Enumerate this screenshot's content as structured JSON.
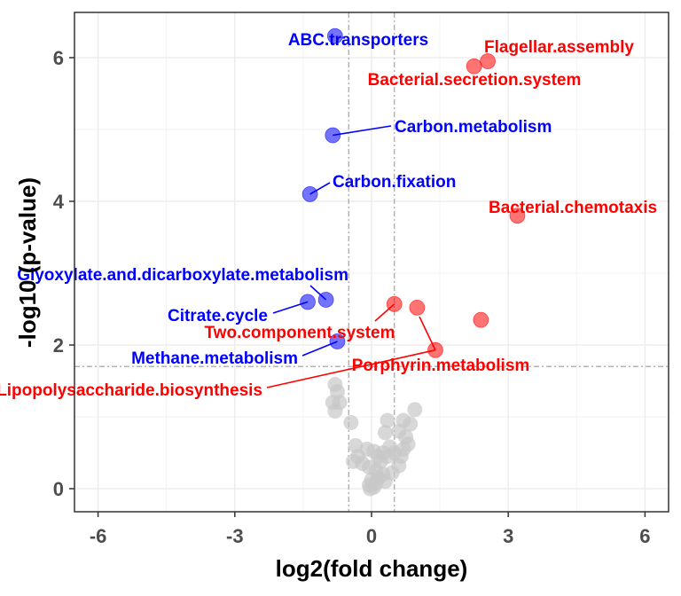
{
  "chart_data": {
    "type": "scatter",
    "title": "",
    "xlabel": "log2(fold change)",
    "ylabel": "-log10 (p-value)",
    "xlim": [
      -6.5,
      6.5
    ],
    "ylim": [
      -0.15,
      6.6
    ],
    "x_ticks": [
      -6,
      -3,
      0,
      3,
      6
    ],
    "x_tick_labels": [
      "-6",
      "-3",
      "0",
      "3",
      "6"
    ],
    "y_ticks": [
      0,
      2,
      4,
      6
    ],
    "y_tick_labels": [
      "0",
      "2",
      "4",
      "6"
    ],
    "grid": true,
    "legend": "none",
    "colors": {
      "down": "#0000ff",
      "up": "#ff0000",
      "ns": "#c8c8c8",
      "guide": "#b3b3b3"
    },
    "thresholds": {
      "x": [
        -0.5,
        0.5
      ],
      "y": 1.7
    },
    "series": [
      {
        "group": "ns",
        "points": [
          [
            -0.8,
            1.45
          ],
          [
            -0.75,
            1.35
          ],
          [
            -0.85,
            1.2
          ],
          [
            -0.7,
            1.2
          ],
          [
            -0.8,
            1.08
          ],
          [
            -0.45,
            0.92
          ],
          [
            0.35,
            0.95
          ],
          [
            0.3,
            0.78
          ],
          [
            0.6,
            0.8
          ],
          [
            0.7,
            0.95
          ],
          [
            0.95,
            1.1
          ],
          [
            0.85,
            0.9
          ],
          [
            0.75,
            0.72
          ],
          [
            0.8,
            0.62
          ],
          [
            0.7,
            0.55
          ],
          [
            0.65,
            0.45
          ],
          [
            0.6,
            0.32
          ],
          [
            0.4,
            0.58
          ],
          [
            0.35,
            0.45
          ],
          [
            0.5,
            0.5
          ],
          [
            0.25,
            0.5
          ],
          [
            0.2,
            0.38
          ],
          [
            0.15,
            0.45
          ],
          [
            0.05,
            0.52
          ],
          [
            -0.1,
            0.55
          ],
          [
            -0.35,
            0.6
          ],
          [
            -0.3,
            0.45
          ],
          [
            -0.2,
            0.35
          ],
          [
            -0.4,
            0.38
          ],
          [
            -0.05,
            0.3
          ],
          [
            0.1,
            0.25
          ],
          [
            0.15,
            0.15
          ],
          [
            0.1,
            0.08
          ],
          [
            0.0,
            0.12
          ],
          [
            -0.05,
            0.05
          ],
          [
            -0.03,
            0.0
          ],
          [
            0.05,
            0.02
          ],
          [
            0.25,
            0.2
          ],
          [
            0.45,
            0.22
          ],
          [
            0.3,
            0.1
          ]
        ]
      },
      {
        "group": "down",
        "points": [
          {
            "x": -0.8,
            "y": 6.3,
            "label": "ABC.transporters"
          },
          {
            "x": -0.85,
            "y": 4.92,
            "label": "Carbon.metabolism"
          },
          {
            "x": -1.35,
            "y": 4.1,
            "label": "Carbon.fixation"
          },
          {
            "x": -1.0,
            "y": 2.63,
            "label": "Glyoxylate.and.dicarboxylate.metabolism"
          },
          {
            "x": -1.4,
            "y": 2.6,
            "label": "Citrate.cycle"
          },
          {
            "x": -0.75,
            "y": 2.05,
            "label": "Methane.metabolism"
          }
        ]
      },
      {
        "group": "up",
        "points": [
          {
            "x": 2.55,
            "y": 5.95,
            "label": "Flagellar.assembly"
          },
          {
            "x": 2.25,
            "y": 5.88,
            "label": "Bacterial.secretion.system"
          },
          {
            "x": 3.2,
            "y": 3.8,
            "label": "Bacterial.chemotaxis"
          },
          {
            "x": 0.5,
            "y": 2.57,
            "label": "Two.component.system"
          },
          {
            "x": 1.0,
            "y": 2.52,
            "label": ""
          },
          {
            "x": 2.4,
            "y": 2.35,
            "label": ""
          },
          {
            "x": 1.4,
            "y": 1.93,
            "label": "Porphyrin.metabolism"
          },
          {
            "x": 1.4,
            "y": 1.93,
            "label": "Lipopolysaccharide.biosynthesis"
          }
        ]
      }
    ]
  }
}
